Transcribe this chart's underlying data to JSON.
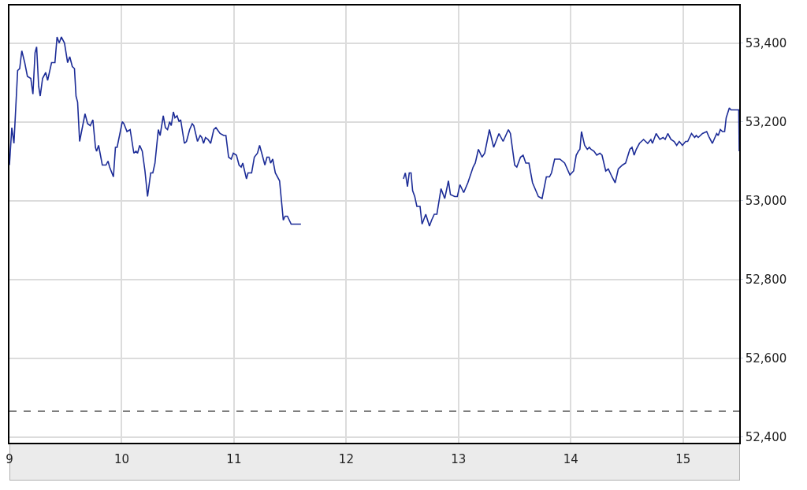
{
  "chart_data": {
    "type": "line",
    "color": "#1c2c97",
    "line_style": "solid",
    "grid": true,
    "xlim": [
      9,
      15.5
    ],
    "xticks": [
      9,
      10,
      11,
      12,
      13,
      14,
      15
    ],
    "ylim": [
      52385,
      53495
    ],
    "yticks": [
      {
        "value": 52400,
        "label": "52,400"
      },
      {
        "value": 52600,
        "label": "52,600"
      },
      {
        "value": 52800,
        "label": "52,800"
      },
      {
        "value": 53000,
        "label": "53,000"
      },
      {
        "value": 53200,
        "label": "53,200"
      },
      {
        "value": 53400,
        "label": "53,400"
      }
    ],
    "ref_lines": [
      {
        "axis": "y",
        "value": 52465,
        "color": "#000000",
        "line_style": "dashed"
      }
    ],
    "x": [
      9.0,
      9.021,
      9.04,
      9.073,
      9.091,
      9.11,
      9.136,
      9.16,
      9.19,
      9.209,
      9.228,
      9.242,
      9.26,
      9.274,
      9.295,
      9.323,
      9.34,
      9.375,
      9.405,
      9.424,
      9.443,
      9.462,
      9.49,
      9.518,
      9.537,
      9.56,
      9.579,
      9.593,
      9.607,
      9.625,
      9.673,
      9.696,
      9.72,
      9.743,
      9.766,
      9.776,
      9.794,
      9.827,
      9.86,
      9.878,
      9.892,
      9.926,
      9.944,
      9.959,
      10.005,
      10.019,
      10.047,
      10.075,
      10.108,
      10.127,
      10.141,
      10.16,
      10.183,
      10.207,
      10.23,
      10.258,
      10.277,
      10.296,
      10.326,
      10.342,
      10.37,
      10.389,
      10.408,
      10.427,
      10.441,
      10.46,
      10.474,
      10.493,
      10.511,
      10.525,
      10.558,
      10.577,
      10.605,
      10.628,
      10.642,
      10.675,
      10.699,
      10.713,
      10.729,
      10.746,
      10.769,
      10.792,
      10.82,
      10.839,
      10.876,
      10.909,
      10.928,
      10.952,
      10.975,
      10.994,
      11.022,
      11.045,
      11.064,
      11.078,
      11.111,
      11.125,
      11.157,
      11.181,
      11.209,
      11.228,
      11.252,
      11.275,
      11.294,
      11.312,
      11.326,
      11.345,
      11.368,
      11.406,
      11.439,
      11.455,
      11.476,
      11.509,
      11.596,
      12.0,
      12.509,
      12.526,
      12.545,
      12.561,
      12.577,
      12.591,
      12.61,
      12.629,
      12.657,
      12.675,
      12.708,
      12.741,
      12.76,
      12.784,
      12.807,
      12.844,
      12.877,
      12.91,
      12.928,
      12.966,
      12.989,
      13.013,
      13.046,
      13.083,
      13.13,
      13.149,
      13.177,
      13.209,
      13.233,
      13.275,
      13.313,
      13.36,
      13.397,
      13.444,
      13.462,
      13.5,
      13.519,
      13.552,
      13.575,
      13.599,
      13.627,
      13.659,
      13.711,
      13.744,
      13.782,
      13.81,
      13.828,
      13.856,
      13.903,
      13.945,
      13.992,
      14.025,
      14.048,
      14.067,
      14.081,
      14.095,
      14.123,
      14.147,
      14.165,
      14.179,
      14.207,
      14.231,
      14.259,
      14.278,
      14.311,
      14.334,
      14.367,
      14.395,
      14.423,
      14.46,
      14.488,
      14.526,
      14.545,
      14.564,
      14.583,
      14.611,
      14.648,
      14.685,
      14.713,
      14.727,
      14.76,
      14.793,
      14.822,
      14.84,
      14.864,
      14.892,
      14.92,
      14.943,
      14.966,
      14.994,
      15.023,
      15.041,
      15.075,
      15.103,
      15.117,
      15.135,
      15.173,
      15.21,
      15.233,
      15.261,
      15.299,
      15.313,
      15.332,
      15.351,
      15.37,
      15.384,
      15.412,
      15.426,
      15.496,
      15.5
    ],
    "values": [
      53090,
      53185,
      53145,
      53330,
      53335,
      53380,
      53350,
      53315,
      53310,
      53270,
      53375,
      53390,
      53290,
      53265,
      53310,
      53325,
      53305,
      53350,
      53350,
      53415,
      53400,
      53415,
      53400,
      53350,
      53365,
      53340,
      53335,
      53265,
      53250,
      53150,
      53220,
      53195,
      53190,
      53205,
      53135,
      53125,
      53140,
      53090,
      53090,
      53100,
      53085,
      53060,
      53135,
      53135,
      53200,
      53195,
      53175,
      53180,
      53120,
      53125,
      53120,
      53140,
      53125,
      53075,
      53010,
      53070,
      53070,
      53095,
      53180,
      53165,
      53215,
      53185,
      53180,
      53200,
      53190,
      53225,
      53210,
      53215,
      53200,
      53205,
      53145,
      53150,
      53180,
      53195,
      53190,
      53150,
      53165,
      53160,
      53145,
      53160,
      53155,
      53145,
      53180,
      53185,
      53170,
      53165,
      53165,
      53110,
      53105,
      53120,
      53115,
      53090,
      53085,
      53095,
      53055,
      53070,
      53070,
      53110,
      53120,
      53140,
      53115,
      53090,
      53110,
      53110,
      53095,
      53105,
      53070,
      53050,
      52950,
      52960,
      52960,
      52940,
      52940,
      null,
      53055,
      53070,
      53035,
      53070,
      53070,
      53025,
      53010,
      52985,
      52985,
      52940,
      52965,
      52935,
      52950,
      52965,
      52965,
      53030,
      53005,
      53050,
      53015,
      53010,
      53010,
      53040,
      53020,
      53045,
      53085,
      53095,
      53130,
      53110,
      53120,
      53180,
      53135,
      53170,
      53150,
      53180,
      53170,
      53090,
      53085,
      53110,
      53115,
      53095,
      53095,
      53045,
      53010,
      53005,
      53060,
      53060,
      53070,
      53105,
      53105,
      53095,
      53065,
      53075,
      53115,
      53125,
      53130,
      53175,
      53140,
      53130,
      53135,
      53130,
      53125,
      53115,
      53120,
      53115,
      53075,
      53080,
      53060,
      53045,
      53080,
      53090,
      53095,
      53130,
      53135,
      53115,
      53130,
      53145,
      53155,
      53145,
      53155,
      53145,
      53170,
      53155,
      53160,
      53155,
      53170,
      53155,
      53150,
      53140,
      53150,
      53140,
      53150,
      53150,
      53170,
      53160,
      53165,
      53160,
      53170,
      53175,
      53160,
      53145,
      53170,
      53165,
      53180,
      53175,
      53175,
      53210,
      53235,
      53230,
      53230,
      53125
    ]
  }
}
